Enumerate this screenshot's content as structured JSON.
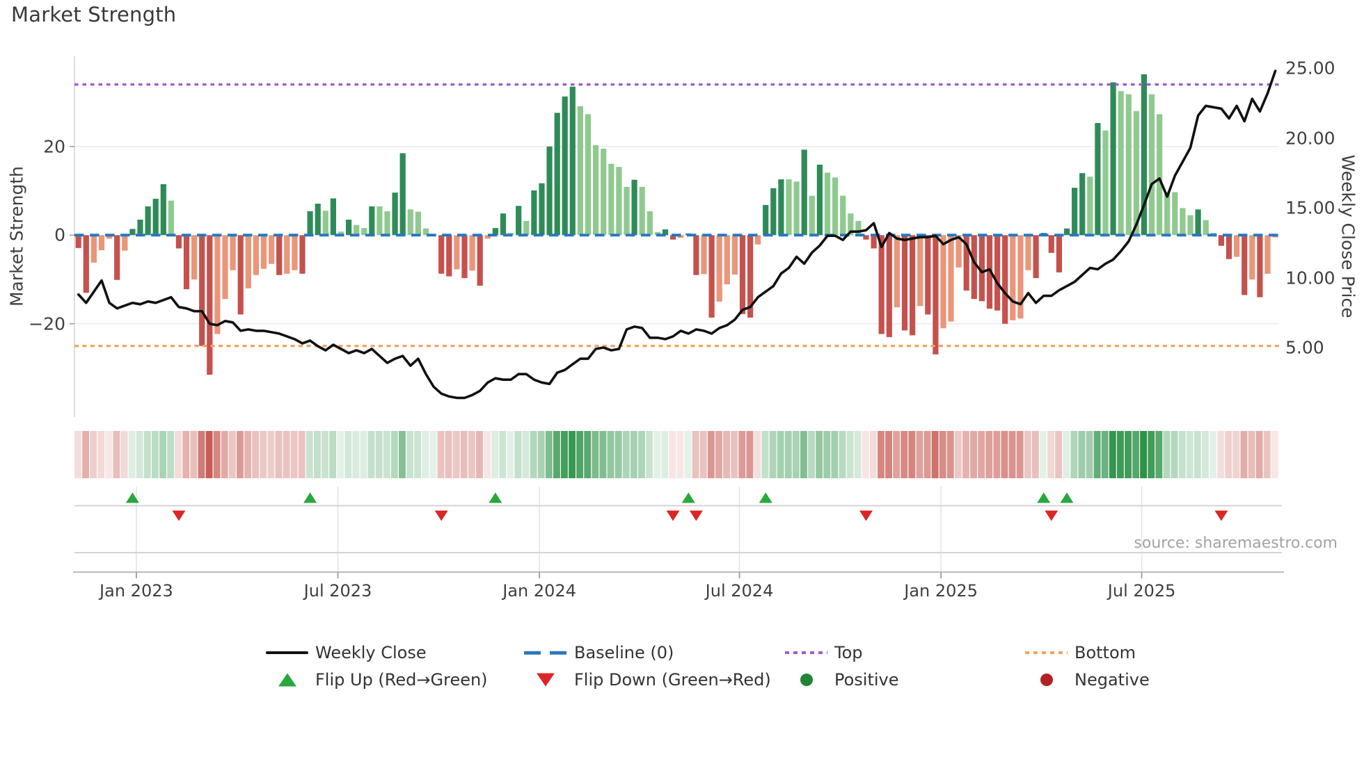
{
  "title": "Market Strength",
  "source_note": "source: sharemaestro.com",
  "axes": {
    "left_label": "Market Strength",
    "right_label": "Weekly Close Price",
    "left_ticks": [
      "20",
      "0",
      "−20"
    ],
    "right_ticks": [
      "25.00",
      "20.00",
      "15.00",
      "10.00",
      "5.00"
    ],
    "x_ticks": [
      "Jan 2023",
      "Jul 2023",
      "Jan 2024",
      "Jul 2024",
      "Jan 2025",
      "Jul 2025"
    ]
  },
  "legend": {
    "weekly_close": "Weekly Close",
    "baseline": "Baseline (0)",
    "top": "Top",
    "bottom": "Bottom",
    "flip_up": "Flip Up (Red→Green)",
    "flip_down": "Flip Down (Green→Red)",
    "positive": "Positive",
    "negative": "Negative"
  },
  "colors": {
    "bar_positive_rising": "#2e8b57",
    "bar_positive_falling": "#8fc98f",
    "bar_negative_falling": "#c5514d",
    "bar_negative_rising": "#e9967a",
    "price_line": "#111111",
    "baseline_dashes": "#2878bd",
    "top_line": "#a05ad5",
    "bottom_line": "#f4a45e",
    "flip_up_marker": "#26a83c",
    "flip_down_marker": "#dc2626",
    "positive_dot": "#208535",
    "negative_dot": "#b22222",
    "heatmap_positive_max": "#2c9147",
    "heatmap_negative_max": "#bf4a42"
  },
  "chart_data": {
    "type": "bar",
    "subtype": "weekly strength bars + weekly close line (right axis) + red/green heatmap strip + flip markers",
    "frequency": "weekly",
    "title": "Market Strength",
    "xlabel": "",
    "ylabel_left": "Market Strength",
    "ylabel_right": "Weekly Close Price",
    "x_tick_labels": [
      "Jan 2023",
      "Jul 2023",
      "Jan 2024",
      "Jul 2024",
      "Jan 2025",
      "Jul 2025"
    ],
    "x_tick_week_positions": [
      7.5,
      33.6,
      59.7,
      85.6,
      111.7,
      137.7
    ],
    "left_axis_ticks": [
      20,
      0,
      -20
    ],
    "left_axis_range": [
      -41,
      40.4
    ],
    "right_axis_ticks": [
      25,
      20,
      15,
      10,
      5
    ],
    "right_axis_range": [
      0,
      25.9
    ],
    "baseline_value": 0,
    "top_line_value": 34,
    "bottom_line_value": -25,
    "grid": "horizontal at +20 and -20 only; vertical date gridlines in lower bands",
    "legend_position": "below chart, 2 rows x 4 columns, centered",
    "series": [
      {
        "name": "Market Strength",
        "type": "bar",
        "axis": "left",
        "color_rule": "positive rising=dark green, positive falling=light green, negative falling=dark red, negative rising=salmon",
        "values": [
          -2.9,
          -13.0,
          -6.2,
          -3.4,
          -0.8,
          -10.1,
          -3.5,
          1.4,
          3.5,
          6.5,
          8.2,
          11.5,
          7.8,
          -3.0,
          -12.2,
          -10.0,
          -25.0,
          -31.5,
          -22.3,
          -14.4,
          -7.9,
          -17.9,
          -12.0,
          -9.0,
          -7.6,
          -6.5,
          -9.0,
          -8.7,
          -7.9,
          -8.7,
          5.4,
          7.1,
          5.5,
          8.3,
          0.8,
          3.5,
          2.3,
          1.6,
          6.5,
          6.5,
          5.4,
          9.6,
          18.5,
          5.8,
          5.3,
          1.5,
          0.3,
          -8.7,
          -9.3,
          -7.7,
          -9.7,
          -8.0,
          -11.4,
          -0.8,
          1.6,
          4.9,
          0.5,
          6.6,
          3.2,
          10.1,
          11.7,
          20.0,
          27.6,
          31.3,
          33.5,
          29.1,
          27.3,
          20.3,
          19.5,
          16.1,
          15.4,
          10.9,
          12.5,
          10.9,
          5.4,
          0.7,
          1.3,
          -1.0,
          -0.6,
          0.4,
          -9.0,
          -8.8,
          -18.6,
          -15.0,
          -11.1,
          -8.9,
          -17.8,
          -18.6,
          -2.1,
          6.8,
          10.6,
          12.6,
          12.6,
          12.1,
          19.3,
          8.9,
          15.9,
          14.1,
          13.0,
          8.9,
          4.9,
          3.2,
          -1.0,
          -3.0,
          -22.3,
          -23.0,
          -16.3,
          -21.5,
          -22.6,
          -16.0,
          -17.9,
          -26.9,
          -21.0,
          -19.5,
          -7.3,
          -12.5,
          -14.4,
          -14.9,
          -16.6,
          -17.0,
          -20.0,
          -19.2,
          -18.8,
          -7.9,
          -9.7,
          0.5,
          -4.0,
          -8.4,
          1.5,
          10.7,
          14.0,
          13.2,
          25.3,
          23.6,
          34.5,
          32.5,
          31.8,
          28.0,
          36.3,
          31.8,
          27.3,
          9.7,
          9.7,
          6.1,
          4.5,
          5.8,
          3.4,
          0.5,
          -2.4,
          -5.4,
          -4.9,
          -13.5,
          -10.0,
          -14.0,
          -8.7,
          -0.5
        ]
      },
      {
        "name": "Weekly Close",
        "type": "line",
        "axis": "right",
        "values": [
          8.8,
          8.2,
          9.0,
          9.8,
          8.2,
          7.8,
          8.0,
          8.2,
          8.1,
          8.3,
          8.2,
          8.4,
          8.6,
          7.9,
          7.8,
          7.6,
          7.6,
          6.7,
          6.6,
          6.9,
          6.8,
          6.2,
          6.3,
          6.2,
          6.2,
          6.1,
          6.0,
          5.8,
          5.6,
          5.3,
          5.5,
          5.1,
          4.8,
          5.2,
          4.9,
          4.6,
          4.8,
          4.6,
          4.9,
          4.4,
          3.9,
          4.2,
          4.4,
          3.7,
          4.2,
          3.1,
          2.2,
          1.7,
          1.5,
          1.4,
          1.4,
          1.6,
          1.9,
          2.5,
          2.8,
          2.7,
          2.7,
          3.1,
          3.1,
          2.7,
          2.5,
          2.4,
          3.2,
          3.4,
          3.8,
          4.2,
          4.2,
          4.9,
          5.0,
          4.8,
          4.9,
          6.3,
          6.5,
          6.4,
          5.7,
          5.7,
          5.6,
          5.8,
          6.2,
          6.0,
          6.3,
          6.2,
          6.0,
          6.4,
          6.6,
          7.0,
          7.7,
          7.9,
          8.6,
          9.0,
          9.4,
          10.3,
          10.7,
          11.5,
          11.0,
          11.8,
          12.3,
          13.0,
          13.0,
          12.7,
          13.3,
          13.3,
          13.4,
          13.9,
          12.2,
          13.2,
          12.8,
          12.7,
          12.8,
          12.9,
          12.9,
          13.0,
          12.4,
          12.7,
          12.9,
          12.4,
          11.1,
          10.4,
          10.6,
          9.6,
          8.9,
          8.3,
          8.1,
          8.9,
          8.2,
          8.7,
          8.7,
          9.1,
          9.4,
          9.7,
          10.2,
          10.7,
          10.6,
          11.0,
          11.3,
          11.9,
          12.6,
          13.8,
          15.2,
          16.7,
          17.1,
          15.8,
          17.3,
          18.3,
          19.3,
          21.6,
          22.3,
          22.2,
          22.1,
          21.4,
          22.3,
          21.2,
          22.8,
          21.9,
          23.2,
          24.8
        ]
      }
    ],
    "heatmap_strip": "one cell per week, intensity proportional to |Market Strength|, green for positive, red for negative",
    "flip_up_weeks": [
      7,
      30,
      54,
      79,
      89,
      125,
      128
    ],
    "flip_down_weeks": [
      13,
      47,
      77,
      80,
      102,
      126,
      148
    ]
  }
}
